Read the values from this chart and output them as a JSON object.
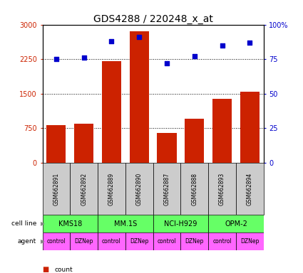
{
  "title": "GDS4288 / 220248_x_at",
  "samples": [
    "GSM662891",
    "GSM662892",
    "GSM662889",
    "GSM662890",
    "GSM662887",
    "GSM662888",
    "GSM662893",
    "GSM662894"
  ],
  "counts": [
    820,
    850,
    2200,
    2850,
    640,
    950,
    1380,
    1540
  ],
  "percentile_ranks": [
    75,
    76,
    88,
    91,
    72,
    77,
    85,
    87
  ],
  "ylim_left": [
    0,
    3000
  ],
  "ylim_right": [
    0,
    100
  ],
  "yticks_left": [
    0,
    750,
    1500,
    2250,
    3000
  ],
  "yticks_right": [
    0,
    25,
    50,
    75,
    100
  ],
  "ytick_labels_left": [
    "0",
    "750",
    "1500",
    "2250",
    "3000"
  ],
  "ytick_labels_right": [
    "0",
    "25",
    "50",
    "75",
    "100%"
  ],
  "cell_lines": [
    "KMS18",
    "MM.1S",
    "NCI-H929",
    "OPM-2"
  ],
  "cell_line_spans": [
    [
      0,
      2
    ],
    [
      2,
      4
    ],
    [
      4,
      6
    ],
    [
      6,
      8
    ]
  ],
  "agents": [
    "control",
    "DZNep",
    "control",
    "DZNep",
    "control",
    "DZNep",
    "control",
    "DZNep"
  ],
  "bar_color": "#cc2200",
  "dot_color": "#0000cc",
  "cell_line_color": "#66ff66",
  "agent_color": "#ff66ff",
  "sample_bg_color": "#cccccc",
  "legend_count_color": "#cc2200",
  "legend_pct_color": "#0000cc",
  "tick_fontsize": 7,
  "title_fontsize": 10,
  "sample_fontsize": 5.5,
  "row_fontsize": 6.5,
  "cell_fontsize": 7,
  "agent_fontsize": 5.5
}
